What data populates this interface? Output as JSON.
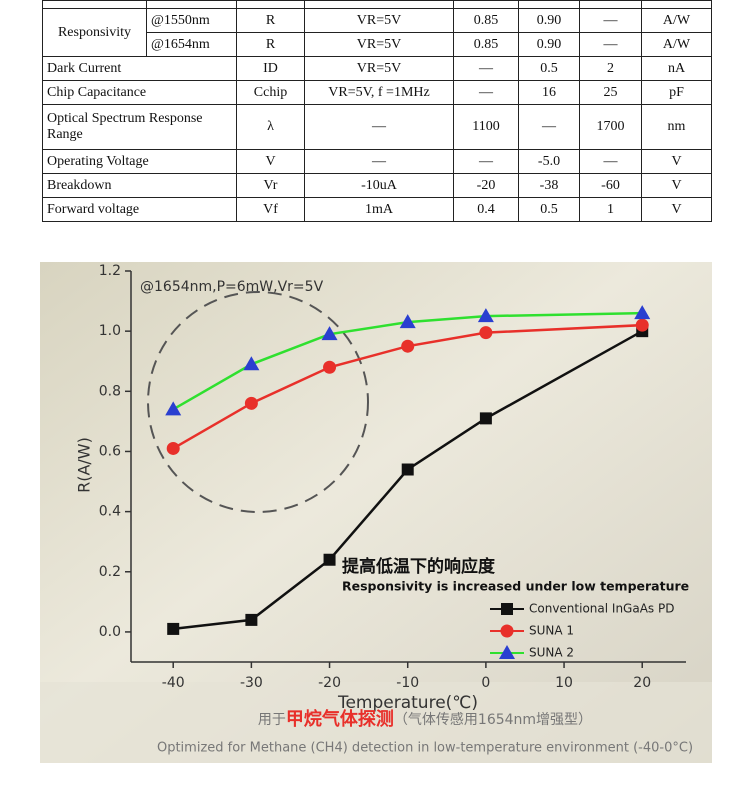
{
  "table": {
    "rows": [
      [
        "Responsivity",
        "@1550nm",
        "R",
        "VR=5V",
        "0.85",
        "0.90",
        "—",
        "A/W"
      ],
      [
        "@1654nm",
        "R",
        "VR=5V",
        "0.85",
        "0.90",
        "—",
        "A/W"
      ],
      [
        "Dark Current",
        "ID",
        "VR=5V",
        "—",
        "0.5",
        "2",
        "nA"
      ],
      [
        "Chip Capacitance",
        "Cchip",
        "VR=5V, f =1MHz",
        "—",
        "16",
        "25",
        "pF"
      ],
      [
        "Optical Spectrum Response Range",
        "λ",
        "—",
        "1100",
        "—",
        "1700",
        "nm"
      ],
      [
        "Operating Voltage",
        "V",
        "—",
        "—",
        "-5.0",
        "—",
        "V"
      ],
      [
        "Breakdown",
        "Vr",
        "-10uA",
        "-20",
        "-38",
        "-60",
        "V"
      ],
      [
        "Forward voltage",
        "Vf",
        "1mA",
        "0.4",
        "0.5",
        "1",
        "V"
      ]
    ]
  },
  "chart_data": {
    "type": "line",
    "annotation": "@1654nm,P=6mW,Vr=5V",
    "highlight_cn": "提高低温下的响应度",
    "highlight_en": "Responsivity is increased under low temperature",
    "x_label": "Temperature(℃)",
    "y_label": "R(A/W)",
    "caption_cn": [
      "用于",
      "甲烷气体探测",
      "（气体传感用1654nm增强型）"
    ],
    "caption_en": "Optimized for Methane (CH4) detection in low-temperature environment (-40-0°C)",
    "x": [
      -40,
      -30,
      -20,
      -10,
      0,
      20
    ],
    "series": [
      {
        "name": "Conventional InGaAs PD",
        "color": "#111111",
        "marker_color": "#111111",
        "marker": "square",
        "values": [
          0.01,
          0.04,
          0.24,
          0.54,
          0.71,
          1.0
        ]
      },
      {
        "name": "SUNA 1",
        "color": "#e8302a",
        "marker_color": "#e8302a",
        "marker": "circle",
        "values": [
          0.61,
          0.76,
          0.88,
          0.95,
          0.995,
          1.02
        ]
      },
      {
        "name": "SUNA 2",
        "color": "#2fe02f",
        "marker_color": "#2a3fd0",
        "marker": "triangle",
        "values": [
          0.74,
          0.89,
          0.99,
          1.03,
          1.05,
          1.06
        ]
      }
    ],
    "xlim": [
      -45.4,
      25.6
    ],
    "ylim": [
      -0.1,
      1.2
    ],
    "xticks": [
      -40,
      -30,
      -20,
      -10,
      0,
      10,
      20
    ],
    "yticks": [
      {
        "value": 0,
        "label": "0.0"
      },
      {
        "value": 0.2,
        "label": "0.2"
      },
      {
        "value": 0.4,
        "label": "0.4"
      },
      {
        "value": 0.6,
        "label": "0.6"
      },
      {
        "value": 0.8,
        "label": "0.8"
      },
      {
        "value": 1.0,
        "label": "1.0"
      },
      {
        "value": 1.2,
        "label": "1.2"
      }
    ],
    "grid": false,
    "legend": "lower right"
  }
}
